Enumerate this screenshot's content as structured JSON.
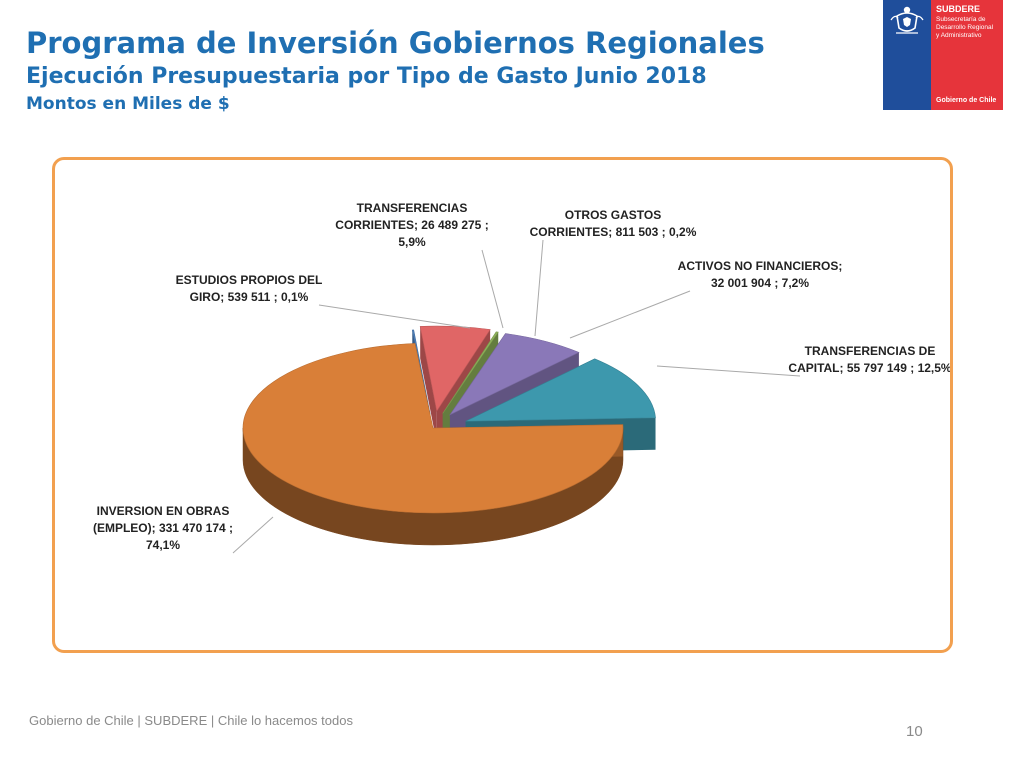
{
  "header": {
    "title": "Programa de Inversión Gobiernos Regionales",
    "subtitle": "Ejecución Presupuestaria por Tipo de Gasto Junio 2018",
    "units": "Montos en Miles de $"
  },
  "logo": {
    "name": "SUBDERE",
    "sub_lines": [
      "Subsecretaría de",
      "Desarrollo Regional",
      "y Administrativo"
    ],
    "gov": "Gobierno de Chile"
  },
  "footer": {
    "text": "Gobierno de Chile | SUBDERE | Chile lo hacemos todos",
    "page": "10"
  },
  "chart_data": {
    "type": "pie",
    "style": "3d-exploded",
    "title": "",
    "slices": [
      {
        "name": "TRANSFERENCIAS CORRIENTES",
        "value": 26489275,
        "percent": 5.9,
        "color": "#e06666",
        "label_lines": [
          "TRANSFERENCIAS",
          "CORRIENTES;  26 489 275 ;",
          "5,9%"
        ]
      },
      {
        "name": "OTROS GASTOS CORRIENTES",
        "value": 811503,
        "percent": 0.2,
        "color": "#8fb35a",
        "label_lines": [
          "OTROS GASTOS",
          "CORRIENTES;  811 503 ; 0,2%"
        ]
      },
      {
        "name": "ACTIVOS NO FINANCIEROS",
        "value": 32001904,
        "percent": 7.2,
        "color": "#8a78b8",
        "label_lines": [
          "ACTIVOS NO FINANCIEROS;",
          "32 001 904 ; 7,2%"
        ]
      },
      {
        "name": "TRANSFERENCIAS DE CAPITAL",
        "value": 55797149,
        "percent": 12.5,
        "color": "#3d98ad",
        "label_lines": [
          "TRANSFERENCIAS DE",
          "CAPITAL;  55 797 149 ; 12,5%"
        ]
      },
      {
        "name": "INVERSION EN OBRAS (EMPLEO)",
        "value": 331470174,
        "percent": 74.1,
        "color": "#d97f38",
        "label_lines": [
          "INVERSION EN OBRAS",
          "(EMPLEO);  331 470 174 ;",
          "74,1%"
        ]
      },
      {
        "name": "ESTUDIOS PROPIOS DEL GIRO",
        "value": 539511,
        "percent": 0.1,
        "color": "#4f81bd",
        "label_lines": [
          "ESTUDIOS PROPIOS DEL",
          "GIRO;  539 511 ; 0,1%"
        ]
      }
    ]
  }
}
